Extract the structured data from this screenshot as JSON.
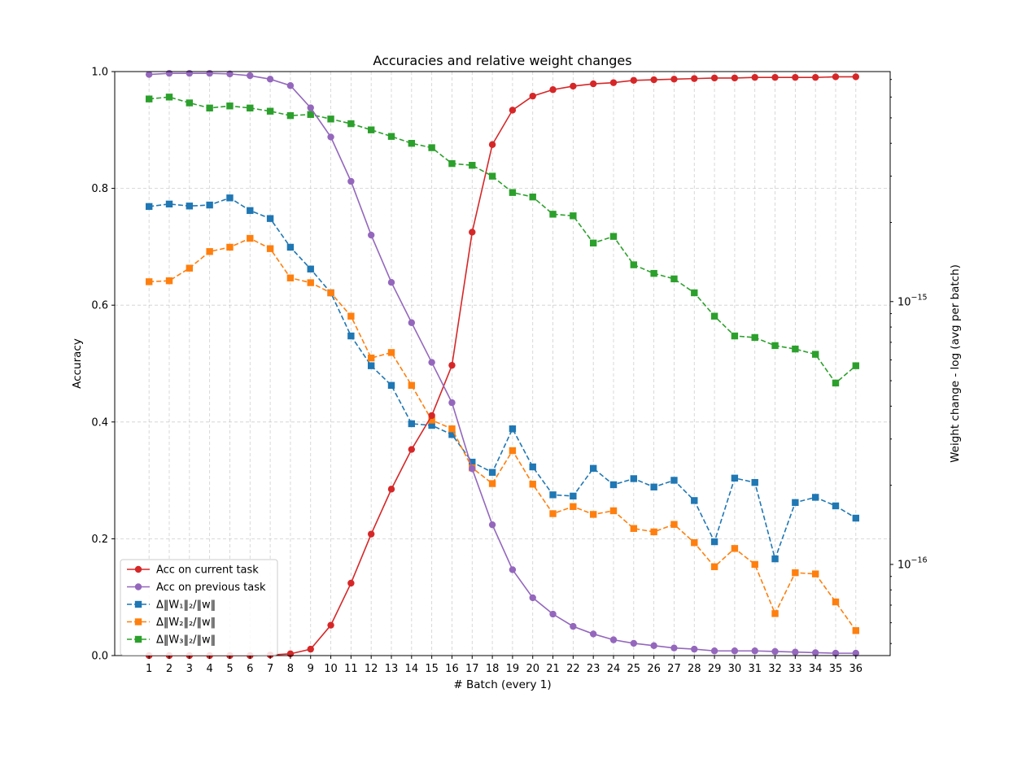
{
  "chart_data": {
    "type": "line",
    "title": "Accuracies and relative weight changes",
    "xlabel": "# Batch (every 1)",
    "ylabel": "Accuracy",
    "ylabel_right": "Weight change - log (avg per batch)",
    "x": [
      1,
      2,
      3,
      4,
      5,
      6,
      7,
      8,
      9,
      10,
      11,
      12,
      13,
      14,
      15,
      16,
      17,
      18,
      19,
      20,
      21,
      22,
      23,
      24,
      25,
      26,
      27,
      28,
      29,
      30,
      31,
      32,
      33,
      34,
      35,
      36
    ],
    "xlim": [
      -0.7,
      37.7
    ],
    "ylim": [
      0,
      1.0
    ],
    "ylim_right": [
      4.5e-17,
      7.5e-15
    ],
    "y_scale_right": "log",
    "y_ticks": [
      "0.0",
      "0.2",
      "0.4",
      "0.6",
      "0.8",
      "1.0"
    ],
    "y_ticks_right": [
      {
        "value": 1e-16,
        "base": "10",
        "exp": "−16"
      },
      {
        "value": 1e-15,
        "base": "10",
        "exp": "−15"
      }
    ],
    "grid": true,
    "legend_position": "lower-left",
    "series": [
      {
        "name": "Acc on current task",
        "axis": "left",
        "color": "#d62728",
        "marker": "circle",
        "dashed": false,
        "values": [
          0.0,
          0.0,
          0.0,
          0.0,
          0.0,
          0.0,
          0.001,
          0.003,
          0.011,
          0.052,
          0.124,
          0.208,
          0.285,
          0.353,
          0.411,
          0.497,
          0.725,
          0.875,
          0.934,
          0.958,
          0.969,
          0.975,
          0.979,
          0.981,
          0.985,
          0.986,
          0.987,
          0.988,
          0.989,
          0.989,
          0.99,
          0.99,
          0.99,
          0.99,
          0.991,
          0.991
        ]
      },
      {
        "name": "Acc on previous task",
        "axis": "left",
        "color": "#9467bd",
        "marker": "circle",
        "dashed": false,
        "values": [
          0.995,
          0.997,
          0.997,
          0.997,
          0.996,
          0.993,
          0.987,
          0.976,
          0.938,
          0.888,
          0.812,
          0.72,
          0.639,
          0.57,
          0.502,
          0.433,
          0.32,
          0.224,
          0.147,
          0.099,
          0.071,
          0.05,
          0.037,
          0.027,
          0.021,
          0.017,
          0.013,
          0.011,
          0.008,
          0.008,
          0.008,
          0.007,
          0.006,
          0.005,
          0.004,
          0.004
        ]
      },
      {
        "name": "Δ‖W₁‖₂/‖w‖",
        "axis": "right",
        "color": "#1f77b4",
        "marker": "square",
        "dashed": true,
        "values": [
          2.3e-15,
          2.35e-15,
          2.31e-15,
          2.33e-15,
          2.48e-15,
          2.22e-15,
          2.07e-15,
          1.61e-15,
          1.33e-15,
          1.08e-15,
          7.4e-16,
          5.7e-16,
          4.8e-16,
          3.43e-16,
          3.38e-16,
          3.12e-16,
          2.45e-16,
          2.24e-16,
          3.28e-16,
          2.35e-16,
          1.84e-16,
          1.82e-16,
          2.32e-16,
          2.01e-16,
          2.12e-16,
          1.97e-16,
          2.09e-16,
          1.75e-16,
          1.22e-16,
          2.13e-16,
          2.05e-16,
          1.05e-16,
          1.72e-16,
          1.8e-16,
          1.67e-16,
          1.5e-16
        ]
      },
      {
        "name": "Δ‖W₂‖₂/‖w‖",
        "axis": "right",
        "color": "#ff7f0e",
        "marker": "square",
        "dashed": true,
        "values": [
          1.19e-15,
          1.2e-15,
          1.34e-15,
          1.55e-15,
          1.61e-15,
          1.74e-15,
          1.59e-15,
          1.23e-15,
          1.18e-15,
          1.08e-15,
          8.8e-16,
          6.1e-16,
          6.4e-16,
          4.8e-16,
          3.54e-16,
          3.28e-16,
          2.33e-16,
          2.03e-16,
          2.71e-16,
          2.02e-16,
          1.56e-16,
          1.66e-16,
          1.55e-16,
          1.6e-16,
          1.37e-16,
          1.33e-16,
          1.42e-16,
          1.21e-16,
          9.8e-17,
          1.15e-16,
          1e-16,
          6.5e-17,
          9.3e-17,
          9.2e-17,
          7.2e-17,
          5.6e-17
        ]
      },
      {
        "name": "Δ‖W₃‖₂/‖w‖",
        "axis": "right",
        "color": "#2ca02c",
        "marker": "square",
        "dashed": true,
        "values": [
          5.9e-15,
          6e-15,
          5.7e-15,
          5.45e-15,
          5.55e-15,
          5.45e-15,
          5.3e-15,
          5.1e-15,
          5.15e-15,
          4.95e-15,
          4.75e-15,
          4.5e-15,
          4.25e-15,
          4e-15,
          3.85e-15,
          3.35e-15,
          3.3e-15,
          3e-15,
          2.6e-15,
          2.5e-15,
          2.15e-15,
          2.12e-15,
          1.67e-15,
          1.77e-15,
          1.38e-15,
          1.28e-15,
          1.22e-15,
          1.08e-15,
          8.8e-16,
          7.4e-16,
          7.3e-16,
          6.8e-16,
          6.6e-16,
          6.3e-16,
          4.9e-16,
          5.7e-16
        ]
      }
    ]
  }
}
